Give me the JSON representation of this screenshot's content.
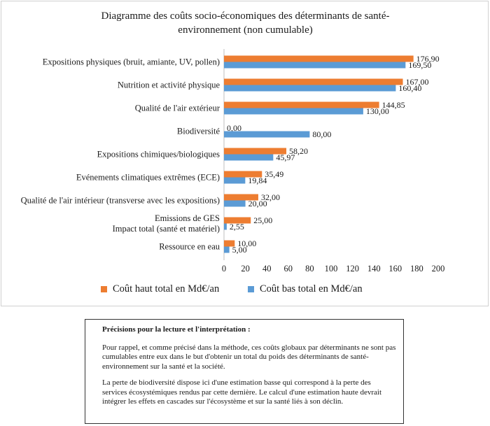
{
  "chart_data": {
    "type": "bar",
    "orientation": "horizontal",
    "title": "Diagramme des coûts socio-économiques des déterminants de santé-environnement (non cumulable)",
    "categories": [
      "Expositions physiques (bruit, amiante, UV, pollen)",
      "Nutrition et activité physique",
      "Qualité de l'air extérieur",
      "Biodiversité",
      "Expositions chimiques/biologiques",
      "Evénements climatiques extrêmes (ECE)",
      "Qualité de l'air intérieur (transverse avec les expositions)",
      "Emissions de GES\nImpact total (santé et matériel)",
      "Ressource en eau"
    ],
    "series": [
      {
        "name": "Coût haut total en Md€/an",
        "color": "#ED7D31",
        "values": [
          176.9,
          167.0,
          144.85,
          0.0,
          58.2,
          35.49,
          32.0,
          25.0,
          10.0
        ],
        "labels": [
          "176,90",
          "167,00",
          "144,85",
          "0,00",
          "58,20",
          "35,49",
          "32,00",
          "25,00",
          "10,00"
        ]
      },
      {
        "name": "Coût bas total en Md€/an",
        "color": "#5B9BD5",
        "values": [
          169.5,
          160.4,
          130.0,
          80.0,
          45.97,
          19.84,
          20.0,
          2.55,
          5.0
        ],
        "labels": [
          "169,50",
          "160,40",
          "130,00",
          "80,00",
          "45,97",
          "19,84",
          "20,00",
          "2,55",
          "5,00"
        ]
      }
    ],
    "xlim": [
      0,
      200
    ],
    "xticks": [
      "0",
      "20",
      "40",
      "60",
      "80",
      "100",
      "120",
      "140",
      "160",
      "180",
      "200"
    ],
    "xlabel": "",
    "ylabel": "",
    "grid": false,
    "legend_position": "bottom"
  },
  "title_lines": [
    "Diagramme des coûts socio-économiques des déterminants de santé-",
    "environnement (non cumulable)"
  ],
  "note": {
    "title": "Précisions pour la lecture et l'interprétation :",
    "paragraphs": [
      "Pour rappel, et comme précisé dans la méthode, ces coûts globaux par déterminants ne sont pas cumulables entre eux dans le but d'obtenir un total du poids des déterminants de santé-environnement sur la santé et la société.",
      "La perte de biodiversité dispose ici d'une estimation basse qui correspond à la perte des services écosystémiques rendus par cette dernière. Le calcul d'une estimation haute devrait intégrer les effets en cascades sur l'écosystème et sur la santé liés à son déclin."
    ]
  }
}
